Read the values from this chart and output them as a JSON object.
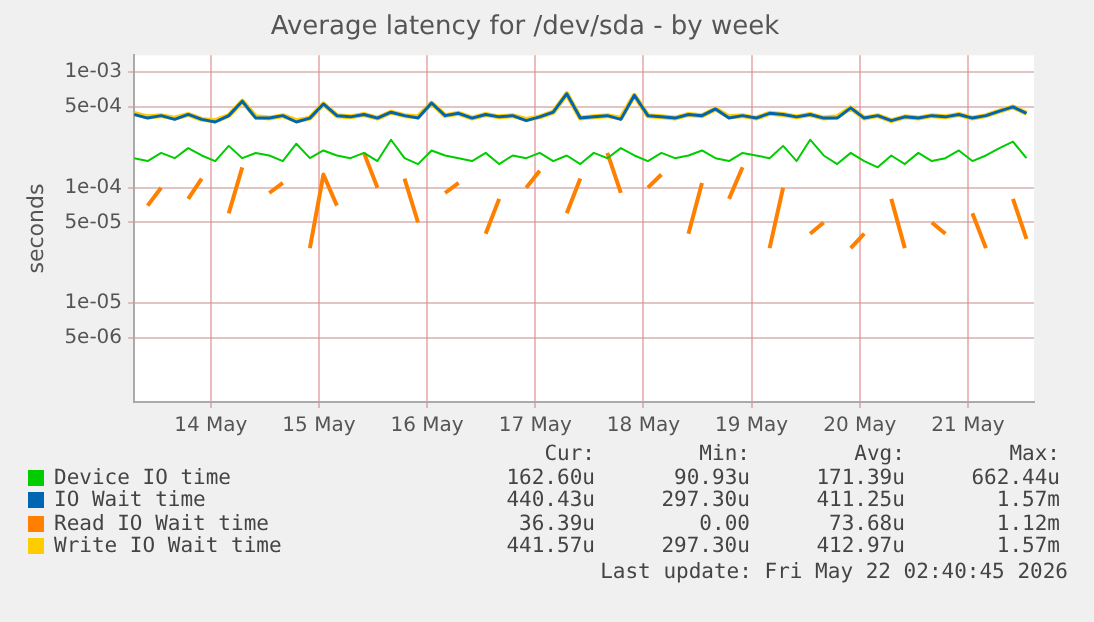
{
  "chart_data": {
    "type": "line",
    "title": "Average latency for /dev/sda - by week",
    "ylabel": "seconds",
    "log": "y",
    "grid": true,
    "legend": "bottom",
    "marker": "none",
    "line_style": "solid",
    "xlim": [
      "2026-05-13T19:00",
      "2026-05-22T02:40"
    ],
    "xticks": [
      {
        "value": "2026-05-14T12:00",
        "label": "14 May"
      },
      {
        "value": "2026-05-15T12:00",
        "label": "15 May"
      },
      {
        "value": "2026-05-16T12:00",
        "label": "16 May"
      },
      {
        "value": "2026-05-17T12:00",
        "label": "17 May"
      },
      {
        "value": "2026-05-18T12:00",
        "label": "18 May"
      },
      {
        "value": "2026-05-19T12:00",
        "label": "19 May"
      },
      {
        "value": "2026-05-20T12:00",
        "label": "20 May"
      },
      {
        "value": "2026-05-21T12:00",
        "label": "21 May"
      }
    ],
    "ylim": [
      1.4e-06,
      0.0014
    ],
    "yticks": [
      {
        "value": 5e-06,
        "label": "5e-06"
      },
      {
        "value": 1e-05,
        "label": "1e-05"
      },
      {
        "value": 5e-05,
        "label": "5e-05"
      },
      {
        "value": 0.0001,
        "label": "1e-04"
      },
      {
        "value": 0.0005,
        "label": "5e-04"
      },
      {
        "value": 0.001,
        "label": "1e-03"
      }
    ],
    "x": [
      "2026-05-13T19:00",
      "2026-05-13T22:00",
      "2026-05-14T01:00",
      "2026-05-14T04:00",
      "2026-05-14T07:00",
      "2026-05-14T10:00",
      "2026-05-14T13:00",
      "2026-05-14T16:00",
      "2026-05-14T19:00",
      "2026-05-14T22:00",
      "2026-05-15T01:00",
      "2026-05-15T04:00",
      "2026-05-15T07:00",
      "2026-05-15T10:00",
      "2026-05-15T13:00",
      "2026-05-15T16:00",
      "2026-05-15T19:00",
      "2026-05-15T22:00",
      "2026-05-16T01:00",
      "2026-05-16T04:00",
      "2026-05-16T07:00",
      "2026-05-16T10:00",
      "2026-05-16T13:00",
      "2026-05-16T16:00",
      "2026-05-16T19:00",
      "2026-05-16T22:00",
      "2026-05-17T01:00",
      "2026-05-17T04:00",
      "2026-05-17T07:00",
      "2026-05-17T10:00",
      "2026-05-17T13:00",
      "2026-05-17T16:00",
      "2026-05-17T19:00",
      "2026-05-17T22:00",
      "2026-05-18T01:00",
      "2026-05-18T04:00",
      "2026-05-18T07:00",
      "2026-05-18T10:00",
      "2026-05-18T13:00",
      "2026-05-18T16:00",
      "2026-05-18T19:00",
      "2026-05-18T22:00",
      "2026-05-19T01:00",
      "2026-05-19T04:00",
      "2026-05-19T07:00",
      "2026-05-19T10:00",
      "2026-05-19T13:00",
      "2026-05-19T16:00",
      "2026-05-19T19:00",
      "2026-05-19T22:00",
      "2026-05-20T01:00",
      "2026-05-20T04:00",
      "2026-05-20T07:00",
      "2026-05-20T10:00",
      "2026-05-20T13:00",
      "2026-05-20T16:00",
      "2026-05-20T19:00",
      "2026-05-20T22:00",
      "2026-05-21T01:00",
      "2026-05-21T04:00",
      "2026-05-21T07:00",
      "2026-05-21T10:00",
      "2026-05-21T13:00",
      "2026-05-21T16:00",
      "2026-05-21T19:00",
      "2026-05-21T22:00",
      "2026-05-22T01:00"
    ],
    "series": [
      {
        "name": "Device IO time",
        "color": "#00cc00",
        "values": [
          0.00018,
          0.00017,
          0.0002,
          0.00018,
          0.00022,
          0.00019,
          0.00017,
          0.00023,
          0.00018,
          0.0002,
          0.00019,
          0.00017,
          0.00024,
          0.00018,
          0.00021,
          0.00019,
          0.00018,
          0.0002,
          0.00017,
          0.00026,
          0.00018,
          0.00016,
          0.00021,
          0.00019,
          0.00018,
          0.00017,
          0.0002,
          0.00016,
          0.00019,
          0.00018,
          0.0002,
          0.00017,
          0.00019,
          0.00016,
          0.0002,
          0.00018,
          0.00022,
          0.00019,
          0.00017,
          0.0002,
          0.00018,
          0.00019,
          0.00021,
          0.00018,
          0.00017,
          0.0002,
          0.00019,
          0.00018,
          0.00023,
          0.00017,
          0.00026,
          0.00019,
          0.00016,
          0.0002,
          0.00017,
          0.00015,
          0.00019,
          0.00016,
          0.0002,
          0.00017,
          0.00018,
          0.00021,
          0.00017,
          0.00019,
          0.00022,
          0.00025,
          0.00018
        ]
      },
      {
        "name": "IO Wait time",
        "color": "#0066b3",
        "values": [
          0.00043,
          0.0004,
          0.00042,
          0.00039,
          0.00043,
          0.00039,
          0.00037,
          0.00042,
          0.00056,
          0.0004,
          0.0004,
          0.00042,
          0.00037,
          0.0004,
          0.00053,
          0.00042,
          0.00041,
          0.00043,
          0.0004,
          0.00045,
          0.00042,
          0.0004,
          0.00054,
          0.00042,
          0.00044,
          0.0004,
          0.00043,
          0.00041,
          0.00042,
          0.00038,
          0.00041,
          0.00045,
          0.00065,
          0.0004,
          0.00041,
          0.00042,
          0.00039,
          0.00063,
          0.00042,
          0.00041,
          0.0004,
          0.00043,
          0.00042,
          0.00048,
          0.0004,
          0.00042,
          0.0004,
          0.00044,
          0.00043,
          0.00041,
          0.00043,
          0.0004,
          0.0004,
          0.00049,
          0.0004,
          0.00042,
          0.00038,
          0.00041,
          0.0004,
          0.00042,
          0.00041,
          0.00043,
          0.0004,
          0.00042,
          0.00046,
          0.0005,
          0.00044
        ]
      },
      {
        "name": "Read IO Wait time",
        "color": "#ff8000",
        "values": [
          null,
          7e-05,
          0.0001,
          null,
          8e-05,
          0.00012,
          null,
          6e-05,
          0.00015,
          null,
          9e-05,
          0.00011,
          null,
          3e-05,
          0.00013,
          7e-05,
          null,
          0.0002,
          0.0001,
          null,
          0.00012,
          5e-05,
          null,
          9e-05,
          0.00011,
          null,
          4e-05,
          8e-05,
          null,
          0.0001,
          0.00014,
          null,
          6e-05,
          0.00012,
          null,
          0.0002,
          9e-05,
          null,
          0.0001,
          0.00013,
          null,
          4e-05,
          0.00011,
          null,
          8e-05,
          0.00015,
          null,
          3e-05,
          0.0001,
          null,
          4e-05,
          5e-05,
          null,
          3e-05,
          4e-05,
          null,
          8e-05,
          3e-05,
          null,
          5e-05,
          4e-05,
          null,
          6e-05,
          3e-05,
          null,
          8e-05,
          3.6e-05
        ]
      },
      {
        "name": "Write IO Wait time",
        "color": "#ffcc00",
        "values": [
          0.00044,
          0.00041,
          0.00042,
          0.0004,
          0.00043,
          0.00039,
          0.00038,
          0.00042,
          0.00056,
          0.00041,
          0.0004,
          0.00042,
          0.00038,
          0.0004,
          0.00053,
          0.00042,
          0.00041,
          0.00043,
          0.0004,
          0.00045,
          0.00042,
          0.00041,
          0.00054,
          0.00042,
          0.00044,
          0.0004,
          0.00043,
          0.00041,
          0.00042,
          0.00039,
          0.00041,
          0.00045,
          0.00065,
          0.0004,
          0.00041,
          0.00042,
          0.0004,
          0.00063,
          0.00042,
          0.00041,
          0.0004,
          0.00043,
          0.00042,
          0.00048,
          0.00041,
          0.00042,
          0.0004,
          0.00044,
          0.00043,
          0.00041,
          0.00043,
          0.0004,
          0.00041,
          0.00049,
          0.0004,
          0.00042,
          0.00038,
          0.00041,
          0.0004,
          0.00042,
          0.00041,
          0.00043,
          0.0004,
          0.00042,
          0.00046,
          0.0005,
          0.00044
        ]
      }
    ],
    "annotations": [
      "Cur:",
      "Min:",
      "Avg:",
      "Max:",
      "162.60u",
      "90.93u",
      "171.39u",
      "662.44u",
      "440.43u",
      "297.30u",
      "411.25u",
      "1.57m",
      "36.39u",
      "0.00",
      "73.68u",
      "1.12m",
      "441.57u",
      "297.30u",
      "412.97u",
      "1.57m",
      "Last update: Fri May 22 02:40:45 2026"
    ]
  }
}
